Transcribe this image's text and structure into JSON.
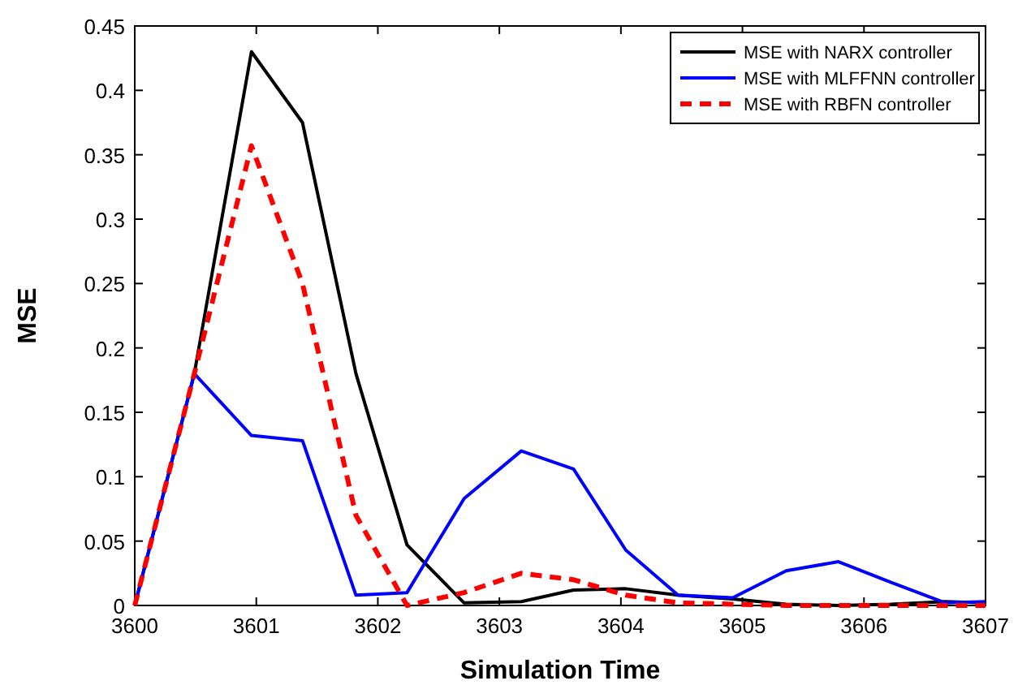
{
  "chart_data": {
    "type": "line",
    "xlabel": "Simulation Time",
    "ylabel": "MSE",
    "x": [
      3600,
      3600.49,
      3600.96,
      3601.38,
      3601.82,
      3602.24,
      3602.71,
      3603.18,
      3603.61,
      3604.04,
      3604.47,
      3604.92,
      3605.36,
      3605.79,
      3606.22,
      3606.67,
      3607
    ],
    "xlim": [
      3600,
      3607
    ],
    "xticks": [
      3600,
      3601,
      3602,
      3603,
      3604,
      3605,
      3606,
      3607
    ],
    "ylim": [
      0,
      0.45
    ],
    "yticks": [
      0,
      0.05,
      0.1,
      0.15,
      0.2,
      0.25,
      0.3,
      0.35,
      0.4,
      0.45
    ],
    "grid": false,
    "legend": "top right",
    "series": [
      {
        "name": "MSE with NARX controller",
        "color": "#000000",
        "line_style": "solid",
        "values": [
          0,
          0.18,
          0.43,
          0.375,
          0.18,
          0.047,
          0.002,
          0.003,
          0.012,
          0.013,
          0.008,
          0.005,
          0.001,
          0,
          0.001,
          0.003,
          0.002
        ]
      },
      {
        "name": "MSE with MLFFNN controller",
        "color": "#0000ff",
        "line_style": "solid",
        "values": [
          0,
          0.18,
          0.132,
          0.128,
          0.008,
          0.01,
          0.083,
          0.12,
          0.106,
          0.043,
          0.008,
          0.006,
          0.027,
          0.034,
          0.018,
          0.002,
          0.003
        ]
      },
      {
        "name": "MSE with RBFN controller",
        "color": "#ff0000",
        "line_style": "dashed",
        "values": [
          0,
          0.18,
          0.357,
          0.25,
          0.07,
          0,
          0.01,
          0.025,
          0.02,
          0.008,
          0.002,
          0.001,
          0,
          0,
          0,
          0,
          0
        ]
      }
    ]
  }
}
